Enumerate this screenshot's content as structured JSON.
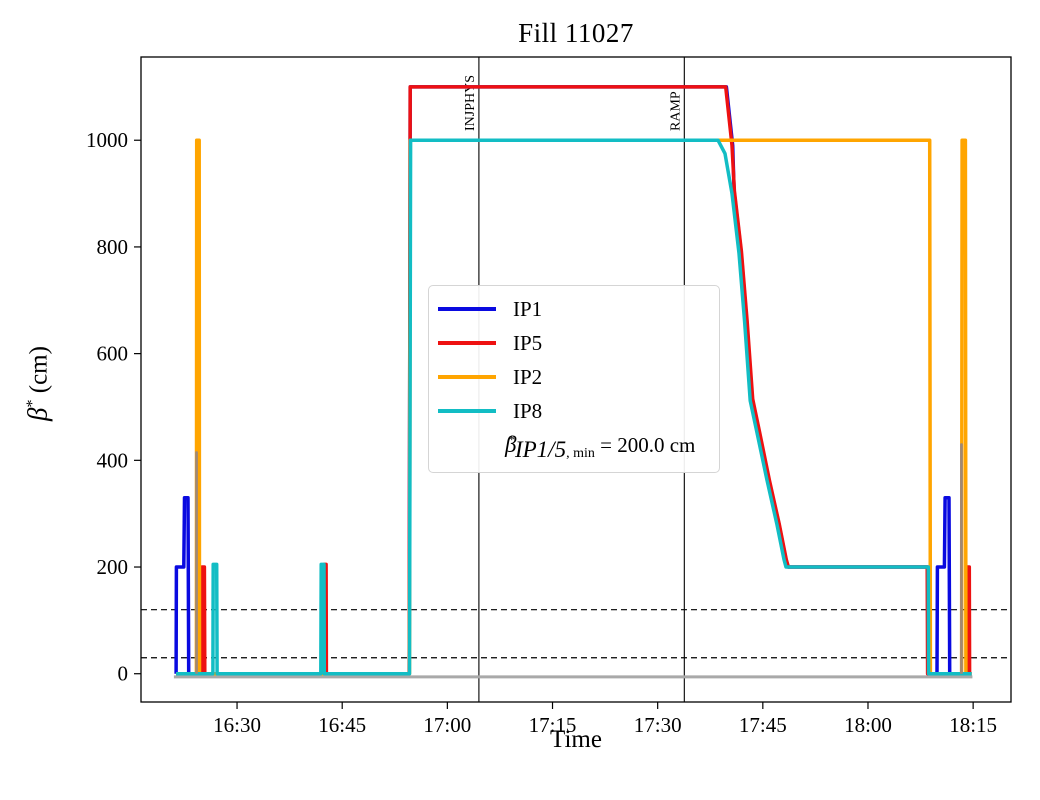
{
  "title": "Fill 11027",
  "axes": {
    "xlabel": "Time",
    "ylabel": {
      "beta": "β",
      "sup": "*",
      "unit": " (cm)"
    }
  },
  "legend": {
    "entries": [
      {
        "label": "IP1",
        "color": "#0a0ae0"
      },
      {
        "label": "IP5",
        "color": "#ee1111"
      },
      {
        "label": "IP2",
        "color": "#ffa500"
      },
      {
        "label": "IP8",
        "color": "#12bdc4"
      }
    ],
    "annotation": {
      "beta": "β",
      "sup": "*",
      "sub_italic": "IP1/5",
      "sub_roman": ", min",
      "rest": " = 200.0 cm"
    }
  },
  "chart_data": {
    "type": "line",
    "title": "Fill 11027",
    "xlabel": "Time",
    "ylabel": "β* (cm)",
    "x_unit": "minutes after 16:00",
    "xlim": [
      16.3,
      140.4
    ],
    "ylim": [
      -53,
      1156
    ],
    "grid": false,
    "legend_position": "center",
    "x_ticks": [
      {
        "label": "16:30",
        "t": 30
      },
      {
        "label": "16:45",
        "t": 45
      },
      {
        "label": "17:00",
        "t": 60
      },
      {
        "label": "17:15",
        "t": 75
      },
      {
        "label": "17:30",
        "t": 90
      },
      {
        "label": "17:45",
        "t": 105
      },
      {
        "label": "18:00",
        "t": 120
      },
      {
        "label": "18:15",
        "t": 135
      }
    ],
    "y_ticks": [
      0,
      200,
      400,
      600,
      800,
      1000
    ],
    "hlines": [
      {
        "y": 120,
        "style": "dashed",
        "color": "#000000"
      },
      {
        "y": 30,
        "style": "dashed",
        "color": "#000000"
      }
    ],
    "vlines": [
      {
        "t": 64.5,
        "time": "17:04",
        "label": "INJPHYS"
      },
      {
        "t": 93.8,
        "time": "17:34",
        "label": "RAMP"
      }
    ],
    "annotation": "β*_IP1/5,min = 200.0 cm",
    "series": [
      {
        "name": "unlabeled-baseline",
        "in_legend": false,
        "color": "#a9a9a9",
        "width": 3,
        "points": [
          [
            21.0,
            -6
          ],
          [
            134.9,
            -6
          ]
        ]
      },
      {
        "name": "IP1",
        "in_legend": true,
        "color": "#0a0ae0",
        "width": 3.5,
        "points": [
          [
            21.3,
            0
          ],
          [
            21.35,
            200
          ],
          [
            22.4,
            200
          ],
          [
            22.5,
            330
          ],
          [
            23.0,
            330
          ],
          [
            23.1,
            0
          ],
          [
            54.55,
            0
          ],
          [
            54.7,
            1100
          ],
          [
            99.8,
            1100
          ],
          [
            100.7,
            990
          ],
          [
            100.9,
            905
          ],
          [
            101.9,
            792
          ],
          [
            102.7,
            662
          ],
          [
            103.5,
            515
          ],
          [
            104.5,
            452
          ],
          [
            105.9,
            362
          ],
          [
            107.3,
            280
          ],
          [
            108.3,
            214
          ],
          [
            108.6,
            200
          ],
          [
            128.5,
            200
          ],
          [
            128.55,
            0
          ],
          [
            129.85,
            0
          ],
          [
            129.9,
            200
          ],
          [
            130.9,
            200
          ],
          [
            131.0,
            330
          ],
          [
            131.55,
            330
          ],
          [
            131.65,
            0
          ],
          [
            132.0,
            0
          ]
        ]
      },
      {
        "name": "IP5",
        "in_legend": true,
        "color": "#ee1111",
        "width": 3.5,
        "points": [
          [
            21.3,
            0
          ],
          [
            24.95,
            0
          ],
          [
            25.0,
            200
          ],
          [
            25.35,
            200
          ],
          [
            25.4,
            0
          ],
          [
            42.4,
            0
          ],
          [
            42.45,
            205
          ],
          [
            42.7,
            205
          ],
          [
            42.75,
            0
          ],
          [
            54.55,
            0
          ],
          [
            54.7,
            1100
          ],
          [
            99.7,
            1100
          ],
          [
            100.6,
            990
          ],
          [
            100.95,
            905
          ],
          [
            101.95,
            792
          ],
          [
            102.75,
            662
          ],
          [
            103.55,
            515
          ],
          [
            104.55,
            452
          ],
          [
            105.95,
            362
          ],
          [
            107.35,
            280
          ],
          [
            108.35,
            214
          ],
          [
            108.65,
            200
          ],
          [
            128.45,
            200
          ],
          [
            128.5,
            0
          ],
          [
            134.05,
            0
          ],
          [
            134.1,
            200
          ],
          [
            134.45,
            200
          ],
          [
            134.5,
            0
          ],
          [
            134.8,
            0
          ]
        ]
      },
      {
        "name": "IP2",
        "in_legend": true,
        "color": "#ffa500",
        "width": 3.5,
        "points": [
          [
            21.3,
            0
          ],
          [
            24.2,
            0
          ],
          [
            24.25,
            1000
          ],
          [
            24.6,
            1000
          ],
          [
            24.65,
            0
          ],
          [
            54.6,
            0
          ],
          [
            54.72,
            1000
          ],
          [
            128.8,
            1000
          ],
          [
            128.9,
            0
          ],
          [
            133.35,
            0
          ],
          [
            133.42,
            1000
          ],
          [
            133.9,
            1000
          ],
          [
            133.97,
            0
          ],
          [
            134.8,
            0
          ]
        ]
      },
      {
        "name": "IP8",
        "in_legend": true,
        "color": "#12bdc4",
        "width": 3.5,
        "points": [
          [
            21.3,
            0
          ],
          [
            26.55,
            0
          ],
          [
            26.6,
            205
          ],
          [
            27.1,
            205
          ],
          [
            27.15,
            0
          ],
          [
            41.95,
            0
          ],
          [
            42.0,
            205
          ],
          [
            42.4,
            205
          ],
          [
            42.45,
            0
          ],
          [
            54.6,
            0
          ],
          [
            54.75,
            1000
          ],
          [
            98.6,
            1000
          ],
          [
            99.6,
            975
          ],
          [
            100.6,
            900
          ],
          [
            101.6,
            788
          ],
          [
            102.4,
            660
          ],
          [
            103.2,
            512
          ],
          [
            104.2,
            450
          ],
          [
            105.6,
            363
          ],
          [
            107.0,
            280
          ],
          [
            108.0,
            215
          ],
          [
            108.3,
            200
          ],
          [
            128.6,
            200
          ],
          [
            128.65,
            0
          ],
          [
            134.8,
            0
          ]
        ]
      },
      {
        "name": "unlabeled-spike-1",
        "in_legend": false,
        "color": "#9e8878",
        "width": 2,
        "points": [
          [
            24.18,
            0
          ],
          [
            24.18,
            415
          ],
          [
            24.28,
            415
          ],
          [
            24.28,
            0
          ]
        ]
      },
      {
        "name": "unlabeled-spike-2",
        "in_legend": false,
        "color": "#9e8878",
        "width": 2,
        "points": [
          [
            133.28,
            0
          ],
          [
            133.28,
            430
          ],
          [
            133.38,
            430
          ],
          [
            133.38,
            0
          ]
        ]
      }
    ]
  }
}
